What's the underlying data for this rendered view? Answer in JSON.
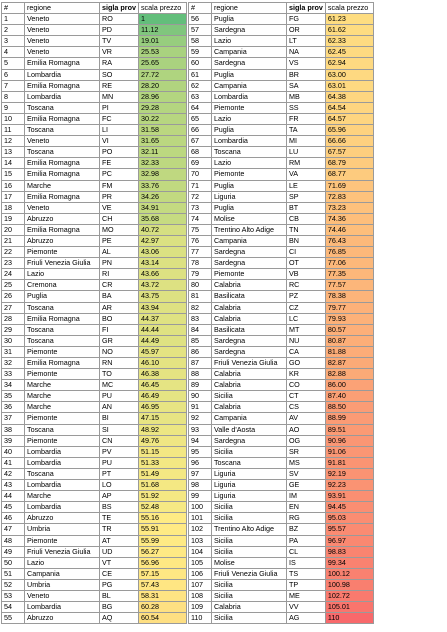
{
  "headers": {
    "num": "#",
    "region": "regione",
    "sigla": "sigla prov",
    "scala": "scala prezzo"
  },
  "color_scale": {
    "low": "#63be7b",
    "mid": "#ffeb84",
    "high": "#f8696b",
    "min": 1,
    "mid_value": 55.5,
    "max": 110
  },
  "left_rows": [
    {
      "n": "1",
      "r": "Veneto",
      "s": "RO",
      "v": "1"
    },
    {
      "n": "2",
      "r": "Veneto",
      "s": "PD",
      "v": "11.12"
    },
    {
      "n": "3",
      "r": "Veneto",
      "s": "TV",
      "v": "19.01"
    },
    {
      "n": "4",
      "r": "Veneto",
      "s": "VR",
      "v": "25.53"
    },
    {
      "n": "5",
      "r": "Emilia Romagna",
      "s": "RA",
      "v": "25.65"
    },
    {
      "n": "6",
      "r": "Lombardia",
      "s": "SO",
      "v": "27.72"
    },
    {
      "n": "7",
      "r": "Emilia Romagna",
      "s": "RE",
      "v": "28.20"
    },
    {
      "n": "8",
      "r": "Lombardia",
      "s": "MN",
      "v": "28.96"
    },
    {
      "n": "9",
      "r": "Toscana",
      "s": "PI",
      "v": "29.28"
    },
    {
      "n": "10",
      "r": "Emilia Romagna",
      "s": "FC",
      "v": "30.22"
    },
    {
      "n": "11",
      "r": "Toscana",
      "s": "LI",
      "v": "31.58"
    },
    {
      "n": "12",
      "r": "Veneto",
      "s": "VI",
      "v": "31.65"
    },
    {
      "n": "13",
      "r": "Toscana",
      "s": "PO",
      "v": "32.11"
    },
    {
      "n": "14",
      "r": "Emilia Romagna",
      "s": "FE",
      "v": "32.33"
    },
    {
      "n": "15",
      "r": "Emilia Romagna",
      "s": "PC",
      "v": "32.98"
    },
    {
      "n": "16",
      "r": "Marche",
      "s": "FM",
      "v": "33.76"
    },
    {
      "n": "17",
      "r": "Emilia Romagna",
      "s": "PR",
      "v": "34.26"
    },
    {
      "n": "18",
      "r": "Veneto",
      "s": "VE",
      "v": "34.91"
    },
    {
      "n": "19",
      "r": "Abruzzo",
      "s": "CH",
      "v": "35.68"
    },
    {
      "n": "20",
      "r": "Emilia Romagna",
      "s": "MO",
      "v": "40.72"
    },
    {
      "n": "21",
      "r": "Abruzzo",
      "s": "PE",
      "v": "42.97"
    },
    {
      "n": "22",
      "r": "Piemonte",
      "s": "AL",
      "v": "43.06"
    },
    {
      "n": "23",
      "r": "Friuli Venezia Giulia",
      "s": "PN",
      "v": "43.14"
    },
    {
      "n": "24",
      "r": "Lazio",
      "s": "RI",
      "v": "43.66"
    },
    {
      "n": "25",
      "r": "Cremona",
      "s": "CR",
      "v": "43.72"
    },
    {
      "n": "26",
      "r": "Puglia",
      "s": "BA",
      "v": "43.75"
    },
    {
      "n": "27",
      "r": "Toscana",
      "s": "AR",
      "v": "43.94"
    },
    {
      "n": "28",
      "r": "Emilia Romagna",
      "s": "BO",
      "v": "44.37"
    },
    {
      "n": "29",
      "r": "Toscana",
      "s": "FI",
      "v": "44.44"
    },
    {
      "n": "30",
      "r": "Toscana",
      "s": "GR",
      "v": "44.49"
    },
    {
      "n": "31",
      "r": "Piemonte",
      "s": "NO",
      "v": "45.97"
    },
    {
      "n": "32",
      "r": "Emilia Romagna",
      "s": "RN",
      "v": "46.10"
    },
    {
      "n": "33",
      "r": "Piemonte",
      "s": "TO",
      "v": "46.38"
    },
    {
      "n": "34",
      "r": "Marche",
      "s": "MC",
      "v": "46.45"
    },
    {
      "n": "35",
      "r": "Marche",
      "s": "PU",
      "v": "46.49"
    },
    {
      "n": "36",
      "r": "Marche",
      "s": "AN",
      "v": "46.95"
    },
    {
      "n": "37",
      "r": "Piemonte",
      "s": "BI",
      "v": "47.15"
    },
    {
      "n": "38",
      "r": "Toscana",
      "s": "SI",
      "v": "48.92"
    },
    {
      "n": "39",
      "r": "Piemonte",
      "s": "CN",
      "v": "49.76"
    },
    {
      "n": "40",
      "r": "Lombardia",
      "s": "PV",
      "v": "51.15"
    },
    {
      "n": "41",
      "r": "Lombardia",
      "s": "PU",
      "v": "51.33"
    },
    {
      "n": "42",
      "r": "Toscana",
      "s": "PT",
      "v": "51.49"
    },
    {
      "n": "43",
      "r": "Lombardia",
      "s": "LO",
      "v": "51.68"
    },
    {
      "n": "44",
      "r": "Marche",
      "s": "AP",
      "v": "51.92"
    },
    {
      "n": "45",
      "r": "Lombardia",
      "s": "BS",
      "v": "52.48"
    },
    {
      "n": "46",
      "r": "Abruzzo",
      "s": "TE",
      "v": "55.16"
    },
    {
      "n": "47",
      "r": "Umbria",
      "s": "TR",
      "v": "55.91"
    },
    {
      "n": "48",
      "r": "Piemonte",
      "s": "AT",
      "v": "55.99"
    },
    {
      "n": "49",
      "r": "Friuli Venezia Giulia",
      "s": "UD",
      "v": "56.27"
    },
    {
      "n": "50",
      "r": "Lazio",
      "s": "VT",
      "v": "56.96"
    },
    {
      "n": "51",
      "r": "Campania",
      "s": "CE",
      "v": "57.15"
    },
    {
      "n": "52",
      "r": "Umbria",
      "s": "PG",
      "v": "57.43"
    },
    {
      "n": "53",
      "r": "Veneto",
      "s": "BL",
      "v": "58.31"
    },
    {
      "n": "54",
      "r": "Lombardia",
      "s": "BG",
      "v": "60.28"
    },
    {
      "n": "55",
      "r": "Abruzzo",
      "s": "AQ",
      "v": "60.54"
    }
  ],
  "right_rows": [
    {
      "n": "56",
      "r": "Puglia",
      "s": "FG",
      "v": "61.23"
    },
    {
      "n": "57",
      "r": "Sardegna",
      "s": "OR",
      "v": "61.62"
    },
    {
      "n": "58",
      "r": "Lazio",
      "s": "LT",
      "v": "62.33"
    },
    {
      "n": "59",
      "r": "Campania",
      "s": "NA",
      "v": "62.45"
    },
    {
      "n": "60",
      "r": "Sardegna",
      "s": "VS",
      "v": "62.94"
    },
    {
      "n": "61",
      "r": "Puglia",
      "s": "BR",
      "v": "63.00"
    },
    {
      "n": "62",
      "r": "Campania",
      "s": "SA",
      "v": "63.01"
    },
    {
      "n": "63",
      "r": "Lombardia",
      "s": "MB",
      "v": "64.38"
    },
    {
      "n": "64",
      "r": "Piemonte",
      "s": "SS",
      "v": "64.54"
    },
    {
      "n": "65",
      "r": "Lazio",
      "s": "FR",
      "v": "64.57"
    },
    {
      "n": "66",
      "r": "Puglia",
      "s": "TA",
      "v": "65.96"
    },
    {
      "n": "67",
      "r": "Lombardia",
      "s": "MI",
      "v": "66.66"
    },
    {
      "n": "68",
      "r": "Toscana",
      "s": "LU",
      "v": "67.57"
    },
    {
      "n": "69",
      "r": "Lazio",
      "s": "RM",
      "v": "68.79"
    },
    {
      "n": "70",
      "r": "Piemonte",
      "s": "VA",
      "v": "68.77"
    },
    {
      "n": "71",
      "r": "Puglia",
      "s": "LE",
      "v": "71.69"
    },
    {
      "n": "72",
      "r": "Liguria",
      "s": "SP",
      "v": "72.83"
    },
    {
      "n": "73",
      "r": "Puglia",
      "s": "BT",
      "v": "73.23"
    },
    {
      "n": "74",
      "r": "Molise",
      "s": "CB",
      "v": "74.36"
    },
    {
      "n": "75",
      "r": "Trentino Alto Adige",
      "s": "TN",
      "v": "74.46"
    },
    {
      "n": "76",
      "r": "Campania",
      "s": "BN",
      "v": "76.43"
    },
    {
      "n": "77",
      "r": "Sardegna",
      "s": "CI",
      "v": "76.85"
    },
    {
      "n": "78",
      "r": "Sardegna",
      "s": "OT",
      "v": "77.06"
    },
    {
      "n": "79",
      "r": "Piemonte",
      "s": "VB",
      "v": "77.35"
    },
    {
      "n": "80",
      "r": "Calabria",
      "s": "RC",
      "v": "77.57"
    },
    {
      "n": "81",
      "r": "Basilicata",
      "s": "PZ",
      "v": "78.38"
    },
    {
      "n": "82",
      "r": "Calabria",
      "s": "CZ",
      "v": "79.77"
    },
    {
      "n": "83",
      "r": "Calabria",
      "s": "LC",
      "v": "79.93"
    },
    {
      "n": "84",
      "r": "Basilicata",
      "s": "MT",
      "v": "80.57"
    },
    {
      "n": "85",
      "r": "Sardegna",
      "s": "NU",
      "v": "80.87"
    },
    {
      "n": "86",
      "r": "Sardegna",
      "s": "CA",
      "v": "81.88"
    },
    {
      "n": "87",
      "r": "Friuli Venezia Giulia",
      "s": "GO",
      "v": "82.87"
    },
    {
      "n": "88",
      "r": "Calabria",
      "s": "KR",
      "v": "82.88"
    },
    {
      "n": "89",
      "r": "Calabria",
      "s": "CO",
      "v": "86.00"
    },
    {
      "n": "90",
      "r": "Sicilia",
      "s": "CT",
      "v": "87.40"
    },
    {
      "n": "91",
      "r": "Calabria",
      "s": "CS",
      "v": "88.50"
    },
    {
      "n": "92",
      "r": "Campania",
      "s": "AV",
      "v": "88.99"
    },
    {
      "n": "93",
      "r": "Valle d'Aosta",
      "s": "AO",
      "v": "89.51"
    },
    {
      "n": "94",
      "r": "Sardegna",
      "s": "OG",
      "v": "90.96"
    },
    {
      "n": "95",
      "r": "Sicilia",
      "s": "SR",
      "v": "91.06"
    },
    {
      "n": "96",
      "r": "Toscana",
      "s": "MS",
      "v": "91.81"
    },
    {
      "n": "97",
      "r": "Liguria",
      "s": "SV",
      "v": "92.19"
    },
    {
      "n": "98",
      "r": "Liguria",
      "s": "GE",
      "v": "92.23"
    },
    {
      "n": "99",
      "r": "Liguria",
      "s": "IM",
      "v": "93.91"
    },
    {
      "n": "100",
      "r": "Sicilia",
      "s": "EN",
      "v": "94.45"
    },
    {
      "n": "101",
      "r": "Sicilia",
      "s": "RG",
      "v": "95.03"
    },
    {
      "n": "102",
      "r": "Trentino Alto Adige",
      "s": "BZ",
      "v": "95.57"
    },
    {
      "n": "103",
      "r": "Sicilia",
      "s": "PA",
      "v": "96.97"
    },
    {
      "n": "104",
      "r": "Sicilia",
      "s": "CL",
      "v": "98.83"
    },
    {
      "n": "105",
      "r": "Molise",
      "s": "IS",
      "v": "99.34"
    },
    {
      "n": "106",
      "r": "Friuli Venezia Giulia",
      "s": "TS",
      "v": "100.12"
    },
    {
      "n": "107",
      "r": "Sicilia",
      "s": "TP",
      "v": "100.98"
    },
    {
      "n": "108",
      "r": "Sicilia",
      "s": "ME",
      "v": "102.72"
    },
    {
      "n": "109",
      "r": "Calabria",
      "s": "VV",
      "v": "105.01"
    },
    {
      "n": "110",
      "r": "Sicilia",
      "s": "AG",
      "v": "110"
    }
  ]
}
